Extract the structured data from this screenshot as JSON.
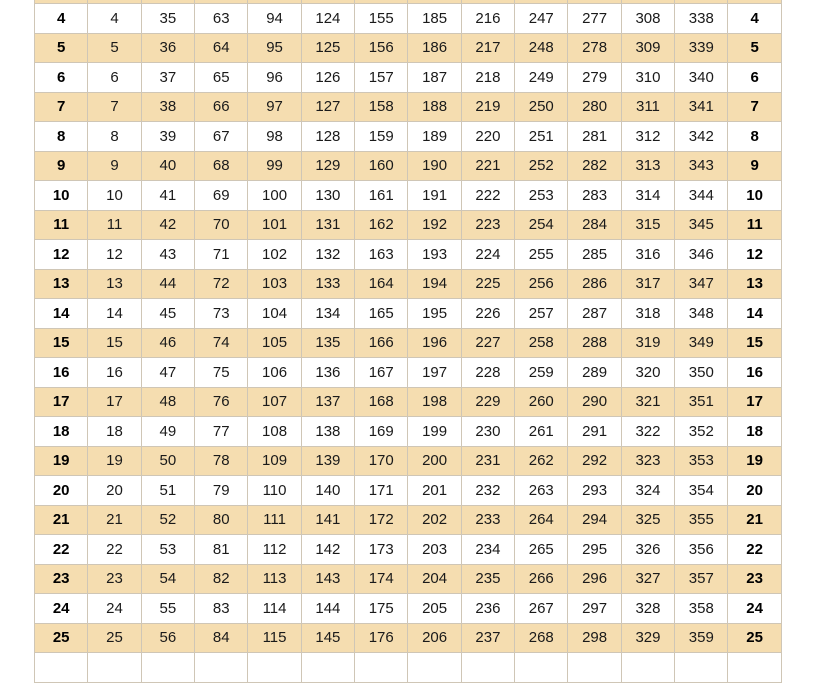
{
  "colors": {
    "odd_row": "#f5ddb0",
    "even_row": "#ffffff",
    "border": "#cfc6b6"
  },
  "rows": [
    {
      "day": "4",
      "values": [
        "4",
        "35",
        "63",
        "94",
        "124",
        "155",
        "185",
        "216",
        "247",
        "277",
        "308",
        "338"
      ]
    },
    {
      "day": "5",
      "values": [
        "5",
        "36",
        "64",
        "95",
        "125",
        "156",
        "186",
        "217",
        "248",
        "278",
        "309",
        "339"
      ]
    },
    {
      "day": "6",
      "values": [
        "6",
        "37",
        "65",
        "96",
        "126",
        "157",
        "187",
        "218",
        "249",
        "279",
        "310",
        "340"
      ]
    },
    {
      "day": "7",
      "values": [
        "7",
        "38",
        "66",
        "97",
        "127",
        "158",
        "188",
        "219",
        "250",
        "280",
        "311",
        "341"
      ]
    },
    {
      "day": "8",
      "values": [
        "8",
        "39",
        "67",
        "98",
        "128",
        "159",
        "189",
        "220",
        "251",
        "281",
        "312",
        "342"
      ]
    },
    {
      "day": "9",
      "values": [
        "9",
        "40",
        "68",
        "99",
        "129",
        "160",
        "190",
        "221",
        "252",
        "282",
        "313",
        "343"
      ]
    },
    {
      "day": "10",
      "values": [
        "10",
        "41",
        "69",
        "100",
        "130",
        "161",
        "191",
        "222",
        "253",
        "283",
        "314",
        "344"
      ]
    },
    {
      "day": "11",
      "values": [
        "11",
        "42",
        "70",
        "101",
        "131",
        "162",
        "192",
        "223",
        "254",
        "284",
        "315",
        "345"
      ]
    },
    {
      "day": "12",
      "values": [
        "12",
        "43",
        "71",
        "102",
        "132",
        "163",
        "193",
        "224",
        "255",
        "285",
        "316",
        "346"
      ]
    },
    {
      "day": "13",
      "values": [
        "13",
        "44",
        "72",
        "103",
        "133",
        "164",
        "194",
        "225",
        "256",
        "286",
        "317",
        "347"
      ]
    },
    {
      "day": "14",
      "values": [
        "14",
        "45",
        "73",
        "104",
        "134",
        "165",
        "195",
        "226",
        "257",
        "287",
        "318",
        "348"
      ]
    },
    {
      "day": "15",
      "values": [
        "15",
        "46",
        "74",
        "105",
        "135",
        "166",
        "196",
        "227",
        "258",
        "288",
        "319",
        "349"
      ]
    },
    {
      "day": "16",
      "values": [
        "16",
        "47",
        "75",
        "106",
        "136",
        "167",
        "197",
        "228",
        "259",
        "289",
        "320",
        "350"
      ]
    },
    {
      "day": "17",
      "values": [
        "17",
        "48",
        "76",
        "107",
        "137",
        "168",
        "198",
        "229",
        "260",
        "290",
        "321",
        "351"
      ]
    },
    {
      "day": "18",
      "values": [
        "18",
        "49",
        "77",
        "108",
        "138",
        "169",
        "199",
        "230",
        "261",
        "291",
        "322",
        "352"
      ]
    },
    {
      "day": "19",
      "values": [
        "19",
        "50",
        "78",
        "109",
        "139",
        "170",
        "200",
        "231",
        "262",
        "292",
        "323",
        "353"
      ]
    },
    {
      "day": "20",
      "values": [
        "20",
        "51",
        "79",
        "110",
        "140",
        "171",
        "201",
        "232",
        "263",
        "293",
        "324",
        "354"
      ]
    },
    {
      "day": "21",
      "values": [
        "21",
        "52",
        "80",
        "111",
        "141",
        "172",
        "202",
        "233",
        "264",
        "294",
        "325",
        "355"
      ]
    },
    {
      "day": "22",
      "values": [
        "22",
        "53",
        "81",
        "112",
        "142",
        "173",
        "203",
        "234",
        "265",
        "295",
        "326",
        "356"
      ]
    },
    {
      "day": "23",
      "values": [
        "23",
        "54",
        "82",
        "113",
        "143",
        "174",
        "204",
        "235",
        "266",
        "296",
        "327",
        "357"
      ]
    },
    {
      "day": "24",
      "values": [
        "24",
        "55",
        "83",
        "114",
        "144",
        "175",
        "205",
        "236",
        "267",
        "297",
        "328",
        "358"
      ]
    },
    {
      "day": "25",
      "values": [
        "25",
        "56",
        "84",
        "115",
        "145",
        "176",
        "206",
        "237",
        "268",
        "298",
        "329",
        "359"
      ]
    }
  ]
}
